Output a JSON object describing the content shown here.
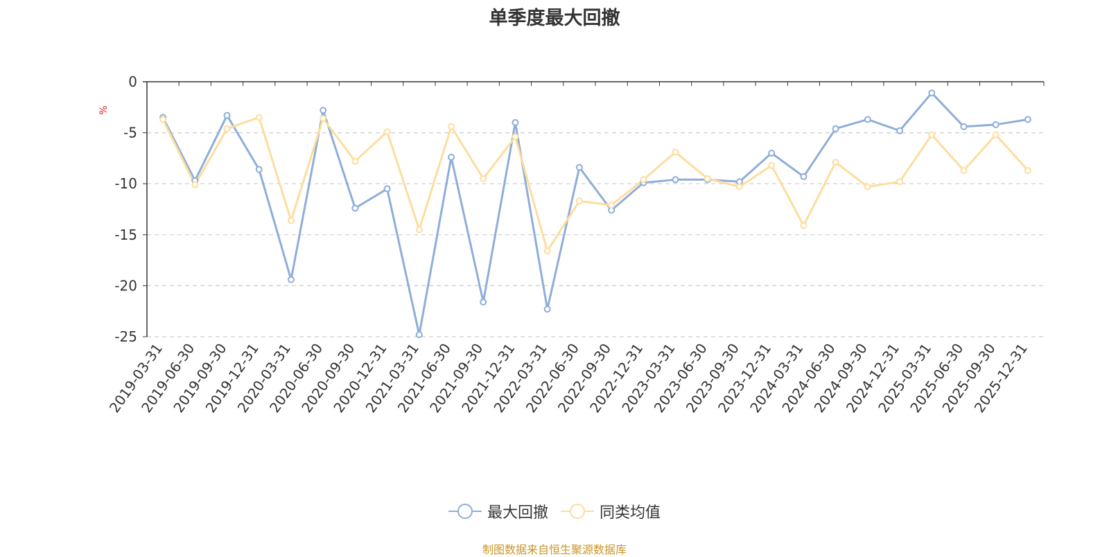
{
  "chart_data": {
    "type": "line",
    "title": "单季度最大回撤",
    "ylabel": "%",
    "ylim": [
      -25,
      0
    ],
    "yticks": [
      0,
      -5,
      -10,
      -15,
      -20,
      -25
    ],
    "grid": true,
    "legend_position": "bottom",
    "categories": [
      "2019-03-31",
      "2019-06-30",
      "2019-09-30",
      "2019-12-31",
      "2020-03-31",
      "2020-06-30",
      "2020-09-30",
      "2020-12-31",
      "2021-03-31",
      "2021-06-30",
      "2021-09-30",
      "2021-12-31",
      "2022-03-31",
      "2022-06-30",
      "2022-09-30",
      "2022-12-31",
      "2023-03-31",
      "2023-06-30",
      "2023-09-30",
      "2023-12-31",
      "2024-03-31",
      "2024-06-30",
      "2024-09-30",
      "2024-12-31",
      "2025-03-31",
      "2025-06-30",
      "2025-09-30",
      "2025-12-31"
    ],
    "series": [
      {
        "name": "最大回撤",
        "color": "#8eadd9",
        "values": [
          -3.5,
          -9.7,
          -3.3,
          -8.6,
          -19.4,
          -2.8,
          -12.4,
          -10.5,
          -24.8,
          -7.4,
          -21.6,
          -4.0,
          -22.3,
          -8.4,
          -12.6,
          -9.9,
          -9.6,
          -9.6,
          -9.8,
          -7.0,
          -9.3,
          -4.6,
          -3.7,
          -4.8,
          -1.1,
          -4.4,
          -4.2,
          -3.7
        ]
      },
      {
        "name": "同类均值",
        "color": "#fddd9e",
        "values": [
          -3.7,
          -10.1,
          -4.6,
          -3.5,
          -13.6,
          -3.6,
          -7.8,
          -4.9,
          -14.5,
          -4.4,
          -9.5,
          -5.4,
          -16.6,
          -11.7,
          -12.1,
          -9.6,
          -6.9,
          -9.5,
          -10.3,
          -8.2,
          -14.1,
          -7.9,
          -10.3,
          -9.8,
          -5.2,
          -8.7,
          -5.2,
          -8.7
        ]
      }
    ]
  },
  "source_text": "制图数据来自恒生聚源数据库",
  "source_color": "#c8962a",
  "axis_label_color": "#333333",
  "unit_color": "#e02020"
}
